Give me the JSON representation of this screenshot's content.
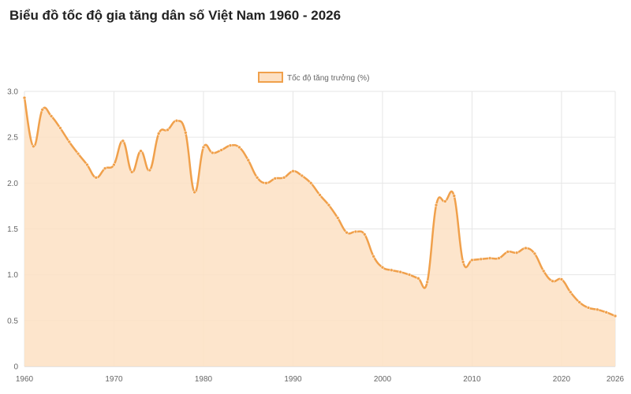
{
  "chart_data": {
    "type": "area",
    "title": "Biểu đồ tốc độ gia tăng dân số Việt Nam 1960 - 2026",
    "legend": {
      "label": "Tốc độ tăng trưởng (%)",
      "placement": "top-center"
    },
    "xlabel": "",
    "ylabel": "",
    "xlim": [
      1960,
      2026
    ],
    "ylim": [
      0,
      3.0
    ],
    "x_ticks": [
      "1960",
      "1970",
      "1980",
      "1990",
      "2000",
      "2010",
      "2020",
      "2026"
    ],
    "y_ticks": [
      "0",
      "0.5",
      "1.0",
      "1.5",
      "2.0",
      "2.5",
      "3.0"
    ],
    "grid": true,
    "colors": {
      "line": "#f0a04b",
      "fill": "#fde0c3",
      "marker": "#f0a04b",
      "grid": "#e6e6e6"
    },
    "series": [
      {
        "name": "Tốc độ tăng trưởng (%)",
        "x": [
          1960,
          1961,
          1962,
          1963,
          1964,
          1965,
          1966,
          1967,
          1968,
          1969,
          1970,
          1971,
          1972,
          1973,
          1974,
          1975,
          1976,
          1977,
          1978,
          1979,
          1980,
          1981,
          1982,
          1983,
          1984,
          1985,
          1986,
          1987,
          1988,
          1989,
          1990,
          1991,
          1992,
          1993,
          1994,
          1995,
          1996,
          1997,
          1998,
          1999,
          2000,
          2001,
          2002,
          2003,
          2004,
          2005,
          2006,
          2007,
          2008,
          2009,
          2010,
          2011,
          2012,
          2013,
          2014,
          2015,
          2016,
          2017,
          2018,
          2019,
          2020,
          2021,
          2022,
          2023,
          2024,
          2025,
          2026
        ],
        "values": [
          2.93,
          2.4,
          2.8,
          2.73,
          2.6,
          2.45,
          2.32,
          2.2,
          2.06,
          2.16,
          2.2,
          2.46,
          2.12,
          2.35,
          2.14,
          2.54,
          2.58,
          2.68,
          2.55,
          1.9,
          2.39,
          2.33,
          2.36,
          2.41,
          2.39,
          2.25,
          2.06,
          2.0,
          2.05,
          2.06,
          2.13,
          2.08,
          2.0,
          1.87,
          1.76,
          1.62,
          1.46,
          1.47,
          1.44,
          1.2,
          1.08,
          1.05,
          1.03,
          1.0,
          0.96,
          0.92,
          1.76,
          1.8,
          1.86,
          1.14,
          1.16,
          1.17,
          1.18,
          1.18,
          1.25,
          1.24,
          1.29,
          1.23,
          1.04,
          0.93,
          0.95,
          0.81,
          0.7,
          0.64,
          0.62,
          0.59,
          0.55
        ]
      }
    ]
  }
}
